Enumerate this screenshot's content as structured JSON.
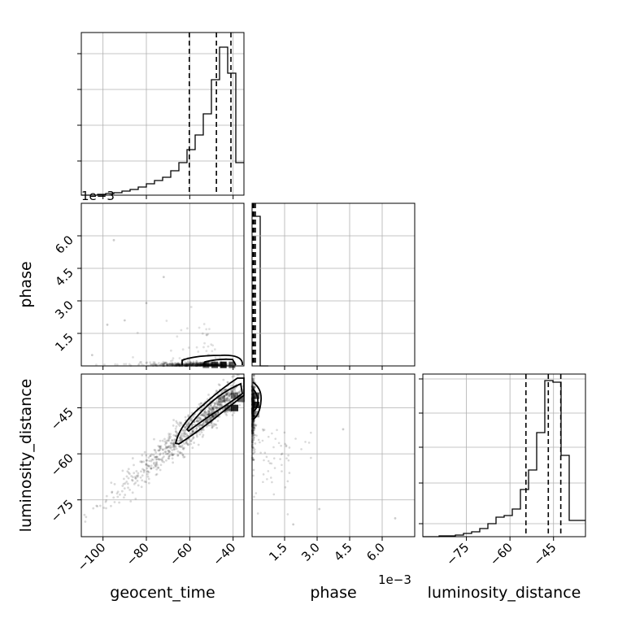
{
  "chart_data": {
    "type": "corner",
    "parameters": [
      "geocent_time",
      "phase",
      "luminosity_distance"
    ],
    "offset_labels": {
      "phase_x": "1e−3",
      "phase_y": "1e−3"
    },
    "panels": [
      {
        "id": "hist_geocent_time",
        "type": "histogram",
        "parameter": "geocent_time",
        "xlim": [
          -110,
          -35
        ],
        "ylim": [
          0,
          1
        ],
        "bin_edges": [
          -110,
          -106.25,
          -102.5,
          -98.75,
          -95,
          -91.25,
          -87.5,
          -83.75,
          -80,
          -76.25,
          -72.5,
          -68.75,
          -65,
          -61.25,
          -57.5,
          -53.75,
          -50,
          -46.25,
          -42.5,
          -38.75,
          -35
        ],
        "counts": [
          0,
          0,
          0.005,
          0.01,
          0.015,
          0.025,
          0.035,
          0.05,
          0.07,
          0.09,
          0.11,
          0.15,
          0.2,
          0.28,
          0.37,
          0.5,
          0.71,
          0.91,
          0.75,
          0.2
        ],
        "quantile_lines": [
          -60.2,
          -47.7,
          -41.0
        ],
        "grid": true
      },
      {
        "id": "scatter_geocent_time_phase",
        "type": "2d-density",
        "x": "geocent_time",
        "y": "phase",
        "xlim": [
          -110,
          -35
        ],
        "ylim": [
          0,
          0.0075
        ],
        "yticks": [
          0.0015,
          0.003,
          0.0045,
          0.006
        ],
        "ytick_labels": [
          "1.5",
          "3.0",
          "4.5",
          "6.0"
        ],
        "grid": true
      },
      {
        "id": "hist_phase",
        "type": "histogram",
        "parameter": "phase",
        "xlim": [
          0,
          0.0075
        ],
        "bin_edges": [
          0,
          0.000375,
          0.00075
        ],
        "counts": [
          0.92,
          0
        ],
        "quantile_lines": [
          3e-05,
          8e-05,
          0.00015
        ],
        "grid": true
      },
      {
        "id": "scatter_geocent_time_luminosity_distance",
        "type": "2d-density",
        "x": "geocent_time",
        "y": "luminosity_distance",
        "xlim": [
          -110,
          -35
        ],
        "ylim": [
          -87,
          -34
        ],
        "xticks": [
          -100,
          -80,
          -60,
          -40
        ],
        "xtick_labels": [
          "−100",
          "−80",
          "−60",
          "−40"
        ],
        "yticks": [
          -45,
          -60,
          -75
        ],
        "ytick_labels": [
          "−45",
          "−60",
          "−75"
        ],
        "grid": true
      },
      {
        "id": "scatter_phase_luminosity_distance",
        "type": "2d-density",
        "x": "phase",
        "y": "luminosity_distance",
        "xlim": [
          0,
          0.0075
        ],
        "ylim": [
          -87,
          -34
        ],
        "xticks": [
          0.0015,
          0.003,
          0.0045,
          0.006
        ],
        "xtick_labels": [
          "1.5",
          "3.0",
          "4.5",
          "6.0"
        ],
        "grid": true
      },
      {
        "id": "hist_luminosity_distance",
        "type": "histogram",
        "parameter": "luminosity_distance",
        "xlim": [
          -90,
          -34
        ],
        "ylim": [
          0,
          1
        ],
        "xticks": [
          -75,
          -60,
          -45
        ],
        "xtick_labels": [
          "−75",
          "−60",
          "−45"
        ],
        "bin_edges": [
          -90,
          -87.2,
          -84.4,
          -81.6,
          -78.8,
          -76,
          -73.2,
          -70.4,
          -67.6,
          -64.8,
          -62,
          -59.2,
          -56.4,
          -53.6,
          -50.8,
          -48,
          -45.2,
          -42.4,
          -39.6,
          -36.8,
          -34
        ],
        "counts": [
          0,
          0,
          0.005,
          0.005,
          0.01,
          0.02,
          0.03,
          0.05,
          0.08,
          0.12,
          0.13,
          0.17,
          0.29,
          0.41,
          0.64,
          0.96,
          0.95,
          0.5,
          0.1,
          0.1
        ],
        "quantile_lines": [
          -54.5,
          -46.8,
          -42.5
        ],
        "grid": true
      }
    ]
  }
}
